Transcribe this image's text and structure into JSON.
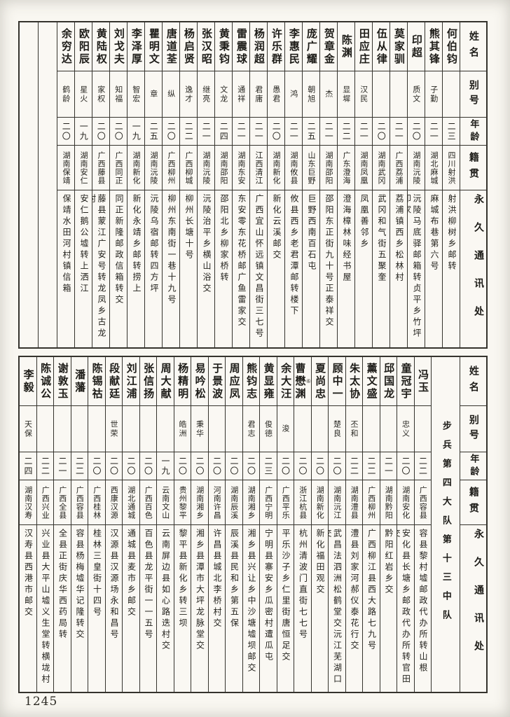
{
  "page": {
    "number": "1245"
  },
  "headers": {
    "name": "姓名",
    "alias": "别号",
    "age": "年龄",
    "native": "籍贯",
    "address": "永久通讯处"
  },
  "tables": [
    {
      "section_label": "",
      "empty_columns": 2,
      "entries": [
        {
          "name": "何伯钧",
          "alias": "",
          "age": "二三",
          "native": "四川射洪",
          "address": "射洪柳树乡邮转"
        },
        {
          "name": "熊其锋",
          "alias": "子勤",
          "age": "二一",
          "native": "湖北麻城",
          "address": "麻城布巷第六号"
        },
        {
          "name": "印超",
          "alias": "质文",
          "age": "二〇",
          "native": "湖南沅陵",
          "address": "沅陵马底驿邮箱转贞平乡竹坪印家"
        },
        {
          "name": "莫家驯",
          "alias": "",
          "age": "二一",
          "native": "广西荔浦",
          "address": "荔浦镇西乡松林村"
        },
        {
          "name": "伍从律",
          "alias": "",
          "age": "二〇",
          "native": "湖南武冈",
          "address": "武冈和气街五聚奎"
        },
        {
          "name": "田应庄",
          "alias": "汉民",
          "age": "二一",
          "native": "湖南凤凰",
          "address": "凤凰善邻乡"
        },
        {
          "name": "陈渊",
          "alias": "显墀",
          "age": "二二",
          "native": "广东澄海",
          "address": "澄海樟林味经书屋"
        },
        {
          "name": "贺章金",
          "alias": "杰",
          "age": "二一",
          "native": "湖南邵阳",
          "address": "邵阳东正街九十号正泰祥交"
        },
        {
          "name": "庞广耀",
          "alias": "朝旭",
          "age": "二五",
          "native": "山东巨野",
          "address": "巨野西南百石屯"
        },
        {
          "name": "李惠民",
          "alias": "鸿",
          "age": "二一",
          "native": "湖南攸县",
          "address": "攸县西乡老君潭邮转楼下"
        },
        {
          "name": "许乐群",
          "alias": "愚君",
          "age": "二〇",
          "native": "湖南新化",
          "address": "新化云溪邮交"
        },
        {
          "name": "杨润超",
          "alias": "君庸",
          "age": "二一",
          "native": "江西清江",
          "address": "广西宜山怀远镇文昌街三七号"
        },
        {
          "name": "雷震球",
          "alias": "通祥",
          "age": "二一",
          "native": "湖南东安",
          "address": "东安零东花桥邮广鱼雷家交"
        },
        {
          "name": "黄秉钧",
          "alias": "文龙",
          "age": "二四",
          "native": "湖南邵阳",
          "address": "邵阳北乡柳家桥转"
        },
        {
          "name": "张汉昭",
          "alias": "继亮",
          "age": "二一",
          "native": "湖南沅陵",
          "address": "沅陵治平乡横山浴交"
        },
        {
          "name": "杨启贤",
          "alias": "逸才",
          "age": "二二",
          "native": "广西柳城",
          "address": "柳州长塘十号"
        },
        {
          "name": "唐道荃",
          "alias": "纵",
          "age": "二〇",
          "native": "广西柳州",
          "address": "柳州东南街一巷十九号"
        },
        {
          "name": "瞿明文",
          "alias": "章",
          "age": "二五",
          "native": "湖南沅陵",
          "address": "沅陵乌宿邮转四方坪"
        },
        {
          "name": "李泽厚",
          "alias": "智宏",
          "age": "一九",
          "native": "湖南新化",
          "address": "新化永靖乡邮转捞上"
        },
        {
          "name": "刘戈夫",
          "alias": "知福",
          "age": "二〇",
          "native": "广西同正",
          "address": "同正新隆邮政信箱转交"
        },
        {
          "name": "黄陆权",
          "alias": "家权",
          "age": "二〇",
          "native": "广西藤县",
          "address": "藤县蒙江广安号转龙凤乡古龙村"
        },
        {
          "name": "欧阳辰",
          "alias": "星火",
          "age": "一九",
          "native": "湖南安仁",
          "address": "安仁鹅公墟转上洒江"
        },
        {
          "name": "余穷达",
          "alias": "鹤龄",
          "age": "二〇",
          "native": "湖南保靖",
          "address": "保靖水田河村镇信箱"
        }
      ]
    },
    {
      "section_label": "步兵第四大队第十三中队",
      "empty_columns": 0,
      "entries": [
        {
          "name": "冯玉",
          "alias": "",
          "age": "二二",
          "native": "广西容县",
          "address": "容县黎村墟邮政代办所转山根"
        },
        {
          "name": "童冠宇",
          "alias": "忠义",
          "age": "二〇",
          "native": "湖南安化",
          "address": "安化县长塘乡邮政代办所转官田交"
        },
        {
          "name": "邱国龙",
          "alias": "",
          "age": "二一",
          "native": "湖南黔阳",
          "address": "黔阳红岩乡交"
        },
        {
          "name": "薰文盛",
          "alias": "",
          "age": "二二",
          "native": "广西柳州",
          "address": "广西柳江县西大路七九号"
        },
        {
          "name": "朱太协",
          "alias": "丕和",
          "age": "二二",
          "native": "湖南澧县",
          "address": "澧县刘家河郝仪泰花行交"
        },
        {
          "name": "顾中一",
          "alias": "楚良",
          "age": "二〇",
          "native": "湖南沅江",
          "address": "武昌法泗洲松鹤堂交沅江芜湖口交"
        },
        {
          "name": "夏尚忠",
          "alias": "",
          "age": "二〇",
          "native": "湖南新化",
          "address": "新化福田观交"
        },
        {
          "name": "曹懋渊",
          "alias": "",
          "age": "二〇",
          "native": "浙江杭县",
          "address": "杭州清波门直街七七号",
          "note": "⑥"
        },
        {
          "name": "余大汪",
          "alias": "浚",
          "age": "二〇",
          "native": "广西平乐",
          "address": "平乐沙子乡仁里街唐恒足交"
        },
        {
          "name": "黄显雍",
          "alias": "俊德",
          "age": "二三",
          "native": "广西宁明",
          "address": "宁明县寨安乡瓜密村遭瓜屯"
        },
        {
          "name": "熊钧志",
          "alias": "君志",
          "age": "二〇",
          "native": "湖南湘乡",
          "address": "湘乡县兴让乡中沙塘墟坝邮交"
        },
        {
          "name": "周应凤",
          "alias": "",
          "age": "二〇",
          "native": "湖南辰溪",
          "address": "辰溪县民和乡第五保"
        },
        {
          "name": "于景波",
          "alias": "",
          "age": "二〇",
          "native": "河南许昌",
          "address": "许昌县城北李桥村交"
        },
        {
          "name": "易吟松",
          "alias": "秉华",
          "age": "二〇",
          "native": "湖南湘乡",
          "address": "湘乡县潭市大坪龙脉堂交"
        },
        {
          "name": "杨精明",
          "alias": "皓洲",
          "age": "二〇",
          "native": "贵州黎平",
          "address": "黎平县新化乡转三坝"
        },
        {
          "name": "周大献",
          "alias": "",
          "age": "一九",
          "native": "云南文山",
          "address": "云南屏边县如心路迭村交"
        },
        {
          "name": "张信扬",
          "alias": "",
          "age": "二〇",
          "native": "广西百色",
          "address": "百色县龙平街一一五号"
        },
        {
          "name": "刘江浦",
          "alias": "",
          "age": "二〇",
          "native": "湖北通城",
          "address": "通城县麦市乡邮交"
        },
        {
          "name": "段献廷",
          "alias": "世荣",
          "age": "二〇",
          "native": "西康汉源",
          "address": "汉源县汉源场永和昌号"
        },
        {
          "name": "陈锡祜",
          "alias": "",
          "age": "二〇",
          "native": "广西桂林",
          "address": "桂林三皇街十四号"
        },
        {
          "name": "潘藩",
          "alias": "",
          "age": "二二",
          "native": "广西容县",
          "address": "容县杨梅墟华记隆转交"
        },
        {
          "name": "谢敦玉",
          "alias": "",
          "age": "二一",
          "native": "广西全县",
          "address": "全县正街庆华西药局转"
        },
        {
          "name": "陈诚公",
          "alias": "",
          "age": "二二",
          "native": "广西兴业",
          "address": "兴业县大平山墟义生堂转横垅村"
        },
        {
          "name": "李毅",
          "alias": "天保",
          "age": "二四",
          "native": "湖南汉寿",
          "address": "汉寿县西港市邮交"
        }
      ]
    }
  ]
}
